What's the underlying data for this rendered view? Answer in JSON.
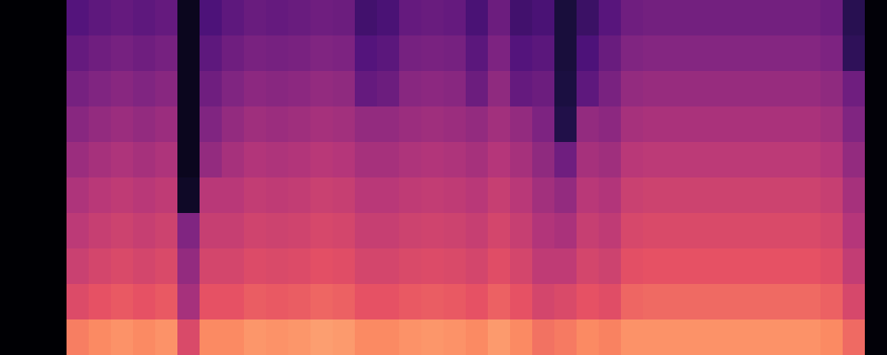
{
  "chart_data": {
    "type": "heatmap",
    "color": "magma",
    "tick_labels": false,
    "cells": [
      [
        2,
        2,
        2,
        32,
        35,
        37,
        35,
        37,
        8,
        30,
        35,
        38,
        37,
        38,
        40,
        39,
        27,
        29,
        37,
        38,
        37,
        29,
        39,
        27,
        29,
        15,
        25,
        33,
        40,
        41,
        41,
        41,
        41,
        41,
        41,
        41,
        41,
        39,
        20,
        3
      ],
      [
        2,
        2,
        2,
        37,
        40,
        42,
        40,
        42,
        8,
        35,
        40,
        43,
        42,
        43,
        45,
        44,
        32,
        34,
        42,
        43,
        42,
        34,
        44,
        32,
        34,
        15,
        30,
        38,
        45,
        46,
        46,
        46,
        46,
        46,
        46,
        46,
        46,
        44,
        22,
        3
      ],
      [
        2,
        2,
        2,
        42,
        45,
        47,
        45,
        47,
        8,
        40,
        45,
        48,
        47,
        48,
        50,
        49,
        37,
        39,
        47,
        48,
        47,
        39,
        49,
        37,
        39,
        16,
        35,
        43,
        50,
        51,
        51,
        51,
        51,
        51,
        51,
        51,
        51,
        49,
        40,
        3
      ],
      [
        2,
        2,
        2,
        47,
        50,
        52,
        50,
        52,
        8,
        45,
        50,
        53,
        52,
        53,
        55,
        54,
        50,
        50,
        52,
        53,
        52,
        50,
        54,
        50,
        44,
        18,
        50,
        48,
        55,
        56,
        56,
        56,
        56,
        56,
        56,
        56,
        56,
        54,
        45,
        3
      ],
      [
        2,
        2,
        2,
        52,
        55,
        57,
        55,
        57,
        8,
        50,
        55,
        58,
        57,
        58,
        60,
        59,
        55,
        55,
        57,
        58,
        57,
        55,
        59,
        55,
        49,
        40,
        55,
        53,
        60,
        61,
        61,
        61,
        61,
        61,
        61,
        61,
        61,
        59,
        50,
        3
      ],
      [
        2,
        2,
        2,
        57,
        60,
        62,
        60,
        62,
        10,
        60,
        60,
        63,
        62,
        63,
        65,
        64,
        60,
        60,
        62,
        63,
        62,
        60,
        64,
        60,
        54,
        50,
        60,
        58,
        65,
        66,
        66,
        66,
        66,
        66,
        66,
        66,
        66,
        64,
        55,
        3
      ],
      [
        2,
        2,
        2,
        61,
        64,
        66,
        64,
        66,
        45,
        64,
        64,
        67,
        66,
        67,
        69,
        68,
        64,
        64,
        66,
        67,
        66,
        64,
        68,
        64,
        58,
        56,
        64,
        62,
        69,
        70,
        70,
        70,
        70,
        70,
        70,
        70,
        70,
        68,
        59,
        3
      ],
      [
        2,
        2,
        2,
        65,
        68,
        70,
        68,
        70,
        50,
        68,
        68,
        71,
        70,
        71,
        73,
        72,
        68,
        68,
        70,
        71,
        70,
        68,
        72,
        68,
        62,
        62,
        68,
        66,
        73,
        74,
        74,
        74,
        74,
        74,
        74,
        74,
        74,
        72,
        63,
        3
      ],
      [
        2,
        2,
        2,
        71,
        74,
        76,
        74,
        76,
        55,
        74,
        74,
        77,
        76,
        77,
        79,
        78,
        74,
        74,
        76,
        77,
        76,
        74,
        78,
        74,
        68,
        70,
        74,
        72,
        79,
        80,
        80,
        80,
        80,
        80,
        80,
        80,
        80,
        78,
        69,
        3
      ],
      [
        2,
        2,
        2,
        85,
        88,
        90,
        88,
        90,
        70,
        88,
        88,
        91,
        90,
        91,
        93,
        92,
        88,
        88,
        90,
        91,
        90,
        88,
        92,
        88,
        82,
        84,
        88,
        86,
        90,
        90,
        90,
        90,
        90,
        90,
        90,
        90,
        90,
        88,
        80,
        3
      ]
    ]
  }
}
